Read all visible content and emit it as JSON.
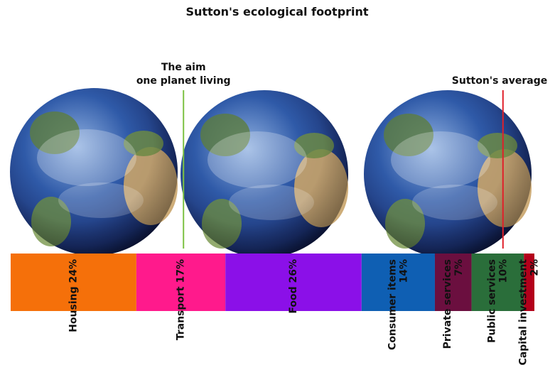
{
  "chart_data": {
    "type": "stacked-bar",
    "title": "Sutton's ecological footprint",
    "categories": [
      "Housing",
      "Transport",
      "Food",
      "Consumer items",
      "Private services",
      "Public services",
      "Capital investment"
    ],
    "values": [
      24,
      17,
      26,
      14,
      7,
      10,
      2
    ],
    "value_labels": [
      "24%",
      "17%",
      "26%",
      "14%",
      "7%",
      "10%",
      "2%"
    ],
    "colors": [
      "#f5700a",
      "#ff1a8c",
      "#8b10e8",
      "#0f5fb3",
      "#6b0f3f",
      "#2a6e3a",
      "#b3001b"
    ],
    "annotations": [
      {
        "lines": [
          "The aim",
          "one planet living"
        ],
        "value": 33,
        "color": "#7cc242"
      },
      {
        "lines": [
          "Sutton's average"
        ],
        "value": 94,
        "color": "#e0202a"
      }
    ]
  }
}
